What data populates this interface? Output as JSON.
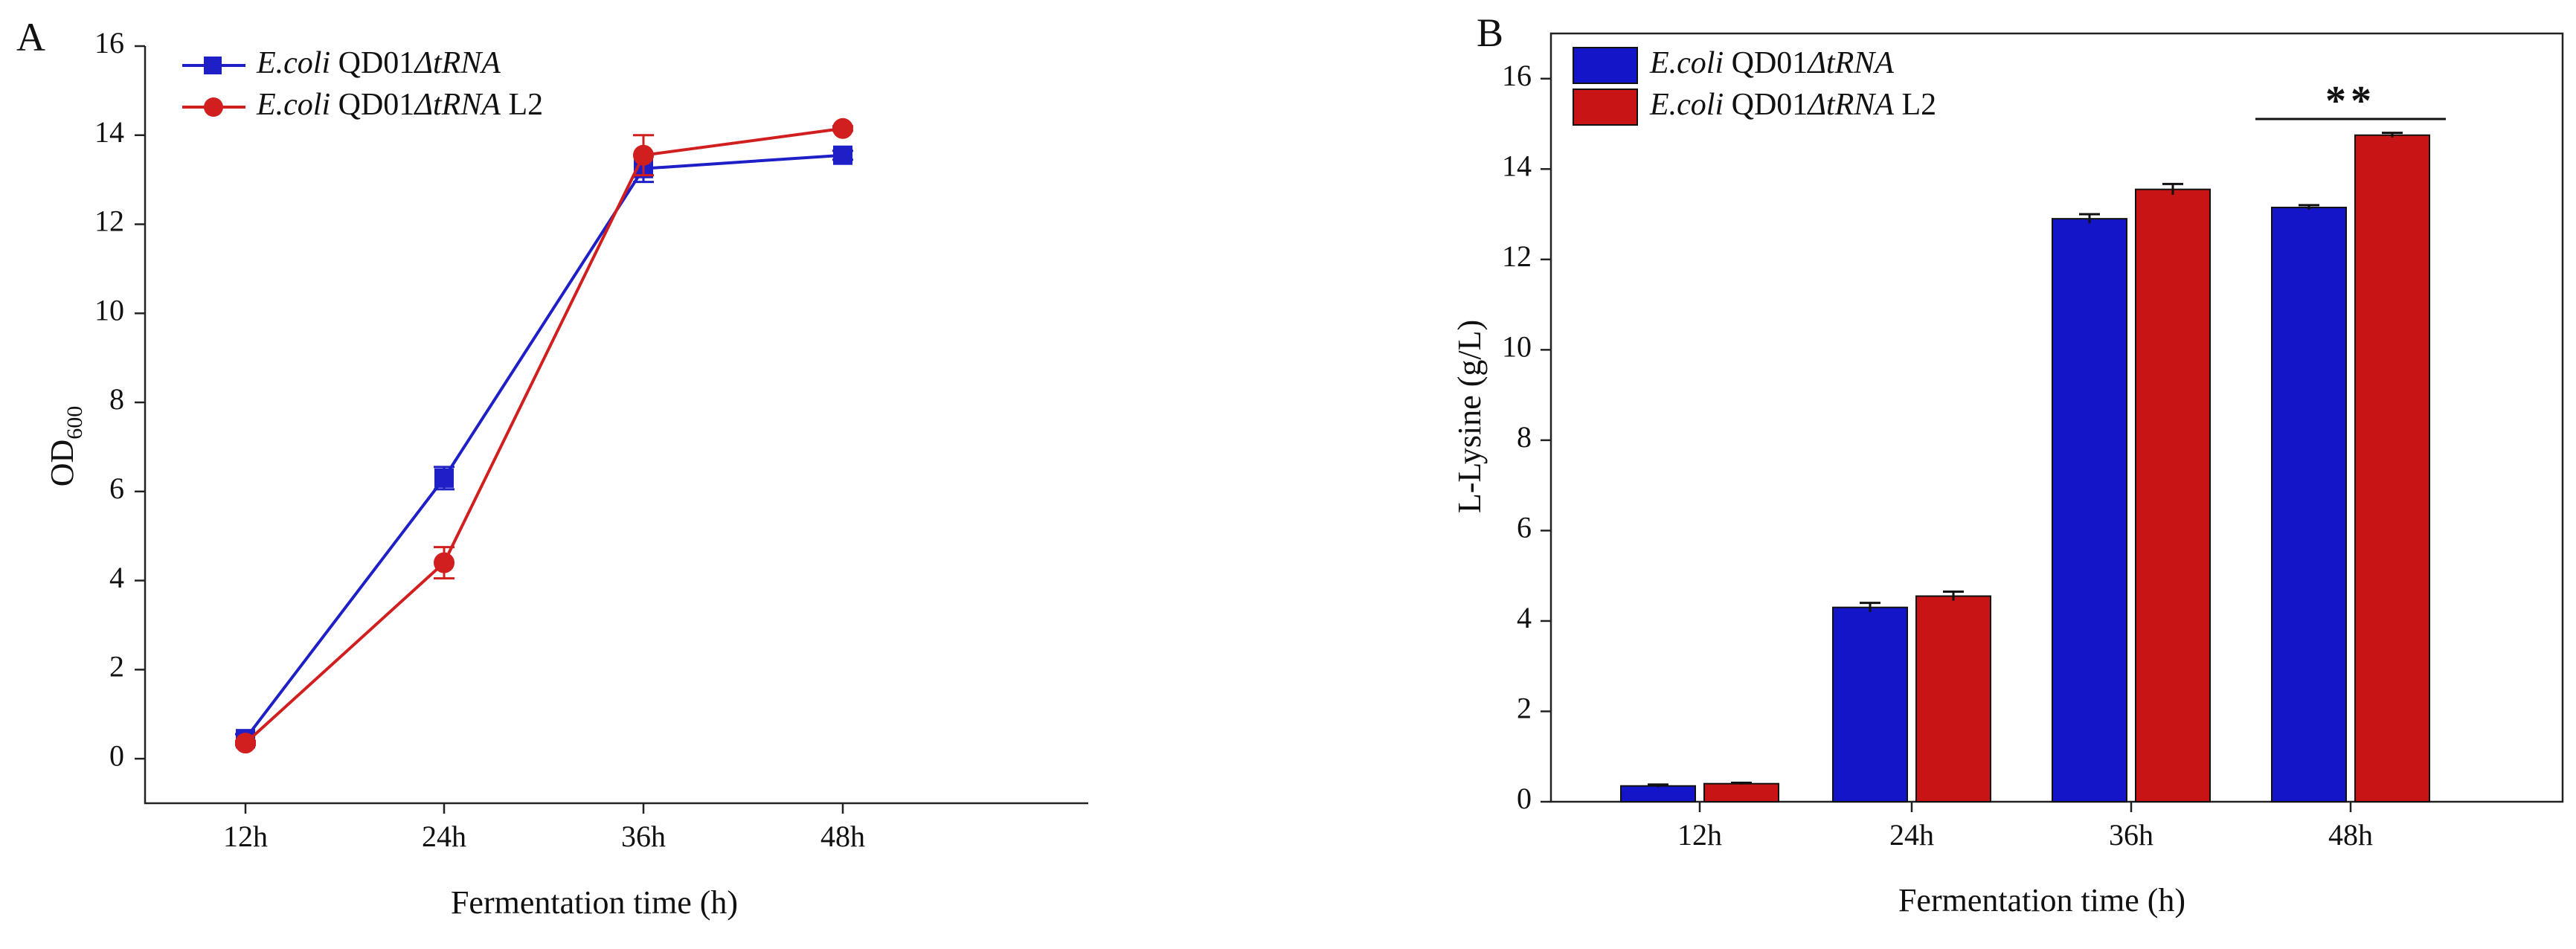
{
  "chart_data": [
    {
      "type": "line",
      "panel_label": "A",
      "title": "",
      "xlabel": "Fermentation time (h)",
      "ylabel": "OD",
      "ylabel_sub": "600",
      "categories": [
        "12h",
        "24h",
        "36h",
        "48h"
      ],
      "ylim": [
        -1,
        16
      ],
      "yticks": [
        0,
        2,
        4,
        6,
        8,
        10,
        12,
        14,
        16
      ],
      "grid": false,
      "legend_position": "top-left",
      "series": [
        {
          "name_italic": "E.coli",
          "name_mid": " QD01",
          "name_mid_italic": "ΔtRNA",
          "name_suffix": "",
          "color": "#1f1fc8",
          "marker": "square",
          "values": [
            0.45,
            6.3,
            13.25,
            13.55
          ],
          "errors": [
            0.1,
            0.25,
            0.3,
            0.1
          ]
        },
        {
          "name_italic": "E.coli",
          "name_mid": " QD01",
          "name_mid_italic": "ΔtRNA",
          "name_suffix": " L2",
          "color": "#d11f1f",
          "marker": "circle",
          "values": [
            0.35,
            4.4,
            13.55,
            14.15
          ],
          "errors": [
            0.05,
            0.35,
            0.45,
            0.05
          ]
        }
      ]
    },
    {
      "type": "bar",
      "panel_label": "B",
      "title": "",
      "xlabel": "Fermentation time (h)",
      "ylabel": "L-Lysine (g/L)",
      "categories": [
        "12h",
        "24h",
        "36h",
        "48h"
      ],
      "ylim": [
        0,
        17
      ],
      "yticks": [
        0,
        2,
        4,
        6,
        8,
        10,
        12,
        14,
        16
      ],
      "grid": false,
      "legend_position": "top-left",
      "significance": {
        "category": "48h",
        "label": "**"
      },
      "series": [
        {
          "name_italic": "E.coli",
          "name_mid": " QD01",
          "name_mid_italic": "ΔtRNA",
          "name_suffix": "",
          "color": "#1414c8",
          "values": [
            0.35,
            4.3,
            12.9,
            13.15
          ],
          "errors": [
            0.03,
            0.1,
            0.1,
            0.05
          ]
        },
        {
          "name_italic": "E.coli",
          "name_mid": " QD01",
          "name_mid_italic": "ΔtRNA",
          "name_suffix": " L2",
          "color": "#c81414",
          "values": [
            0.4,
            4.55,
            13.55,
            14.75
          ],
          "errors": [
            0.02,
            0.1,
            0.12,
            0.05
          ]
        }
      ]
    }
  ]
}
